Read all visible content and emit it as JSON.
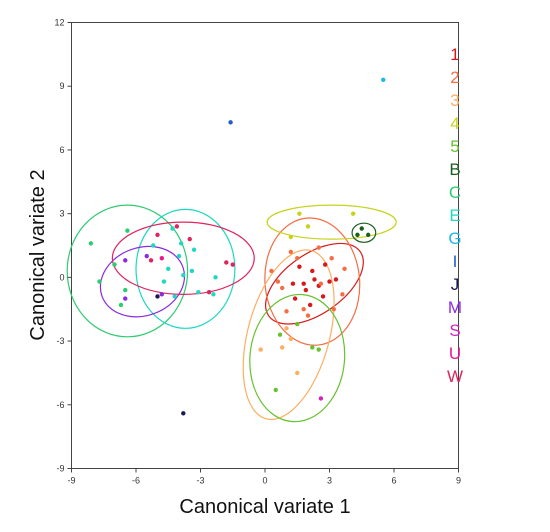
{
  "chart_data": {
    "type": "scatter",
    "title": "",
    "xlabel": "Canonical variate 1",
    "ylabel": "Canonical variate 2",
    "xlim": [
      -9,
      9
    ],
    "ylim": [
      -9,
      12
    ],
    "xticks": [
      "-9",
      "-6",
      "-3",
      "0",
      "3",
      "6",
      "9"
    ],
    "yticks": [
      "12",
      "9",
      "6",
      "3",
      "0",
      "-3",
      "-6",
      "-9"
    ],
    "grid": false,
    "legend_placement": "right",
    "series": [
      {
        "name": "1",
        "color": "#d7191c",
        "points": [
          [
            1.3,
            -0.3
          ],
          [
            1.6,
            0.5
          ],
          [
            1.9,
            -0.6
          ],
          [
            2.2,
            0.3
          ],
          [
            2.5,
            -0.4
          ],
          [
            2.8,
            0.6
          ],
          [
            3.0,
            -0.2
          ],
          [
            1.4,
            -1.0
          ],
          [
            2.1,
            -1.3
          ],
          [
            2.7,
            -0.9
          ],
          [
            3.3,
            -0.1
          ],
          [
            2.3,
            -0.1
          ],
          [
            1.8,
            -0.3
          ]
        ],
        "ellipse": {
          "cx": 2.3,
          "cy": -0.3,
          "rx": 2.6,
          "ry": 1.4,
          "angle": 35
        }
      },
      {
        "name": "2",
        "color": "#f46d43",
        "points": [
          [
            0.3,
            0.3
          ],
          [
            0.6,
            -0.2
          ],
          [
            1.2,
            1.2
          ],
          [
            1.8,
            -1.5
          ],
          [
            2.5,
            1.4
          ],
          [
            3.1,
            0.9
          ],
          [
            3.6,
            -0.8
          ],
          [
            3.2,
            -1.5
          ],
          [
            2.0,
            -1.8
          ],
          [
            1.0,
            -1.6
          ],
          [
            2.6,
            -0.3
          ],
          [
            3.7,
            0.4
          ],
          [
            0.8,
            -0.5
          ],
          [
            1.5,
            0.9
          ]
        ],
        "ellipse": {
          "cx": 2.2,
          "cy": -0.2,
          "rx": 2.2,
          "ry": 3.0,
          "angle": 5
        }
      },
      {
        "name": "3",
        "color": "#fdae61",
        "points": [
          [
            -0.2,
            -3.4
          ],
          [
            1.0,
            -2.4
          ],
          [
            1.5,
            -4.5
          ],
          [
            1.2,
            -2.9
          ],
          [
            0.8,
            -3.3
          ]
        ],
        "ellipse": {
          "cx": 1.1,
          "cy": -2.7,
          "rx": 1.9,
          "ry": 4.1,
          "angle": -15
        }
      },
      {
        "name": "4",
        "color": "#c9d21b",
        "points": [
          [
            1.6,
            3.0
          ],
          [
            4.1,
            3.0
          ],
          [
            2.0,
            2.4
          ],
          [
            4.3,
            2.0
          ],
          [
            1.2,
            1.9
          ]
        ],
        "ellipse": {
          "cx": 3.1,
          "cy": 2.6,
          "rx": 3.0,
          "ry": 0.8,
          "angle": 0
        }
      },
      {
        "name": "5",
        "color": "#66c22e",
        "points": [
          [
            0.5,
            -5.3
          ],
          [
            0.7,
            -2.7
          ],
          [
            2.2,
            -3.3
          ],
          [
            2.5,
            -3.4
          ],
          [
            1.5,
            -2.2
          ]
        ],
        "ellipse": {
          "cx": 1.5,
          "cy": -3.8,
          "rx": 2.2,
          "ry": 3.0,
          "angle": -5
        }
      },
      {
        "name": "B",
        "color": "#1b5e20",
        "points": [
          [
            4.3,
            2.0
          ],
          [
            4.8,
            2.0
          ],
          [
            4.5,
            2.3
          ]
        ],
        "ellipse": {
          "cx": 4.6,
          "cy": 2.1,
          "rx": 0.55,
          "ry": 0.45,
          "angle": 0
        }
      },
      {
        "name": "C",
        "color": "#2ecc71",
        "points": [
          [
            -8.1,
            1.6
          ],
          [
            -7.7,
            -0.2
          ],
          [
            -6.7,
            -1.3
          ],
          [
            -6.5,
            -0.6
          ],
          [
            -6.4,
            2.2
          ],
          [
            -7.0,
            0.6
          ]
        ],
        "ellipse": {
          "cx": -6.4,
          "cy": 0.3,
          "rx": 2.8,
          "ry": 3.1,
          "angle": 0
        }
      },
      {
        "name": "E",
        "color": "#1fd8c2",
        "points": [
          [
            -4.3,
            2.3
          ],
          [
            -3.9,
            1.6
          ],
          [
            -3.3,
            1.3
          ],
          [
            -4.5,
            0.4
          ],
          [
            -3.8,
            0.1
          ],
          [
            -3.4,
            0.3
          ],
          [
            -2.3,
            0.0
          ],
          [
            -4.2,
            -0.9
          ],
          [
            -3.1,
            -0.7
          ],
          [
            -5.2,
            1.5
          ],
          [
            -2.4,
            -0.8
          ],
          [
            -4.0,
            1.0
          ],
          [
            -4.7,
            -0.2
          ]
        ],
        "ellipse": {
          "cx": -3.7,
          "cy": 0.4,
          "rx": 2.3,
          "ry": 2.8,
          "angle": 0
        }
      },
      {
        "name": "G",
        "color": "#1fb6e6",
        "points": [
          [
            5.5,
            9.3
          ]
        ],
        "ellipse": null
      },
      {
        "name": "I",
        "color": "#1f5ec8",
        "points": [
          [
            -1.6,
            7.3
          ]
        ],
        "ellipse": null
      },
      {
        "name": "J",
        "color": "#1a1a4e",
        "points": [
          [
            -3.8,
            -6.4
          ],
          [
            -5.0,
            -0.9
          ]
        ],
        "ellipse": null
      },
      {
        "name": "M",
        "color": "#8a2be2",
        "points": [
          [
            -6.5,
            0.8
          ],
          [
            -6.5,
            -1.0
          ],
          [
            -4.8,
            -0.8
          ],
          [
            -5.5,
            1.0
          ]
        ],
        "ellipse": {
          "cx": -5.7,
          "cy": -0.2,
          "rx": 2.0,
          "ry": 1.6,
          "angle": 20
        }
      },
      {
        "name": "S",
        "color": "#d322b8",
        "points": [
          [
            2.6,
            -5.7
          ]
        ],
        "ellipse": null
      },
      {
        "name": "U",
        "color": "#e8198b",
        "points": [
          [
            -4.8,
            0.9
          ]
        ],
        "ellipse": null
      },
      {
        "name": "W",
        "color": "#e0245e",
        "points": [
          [
            -5.0,
            2.0
          ],
          [
            -3.5,
            1.8
          ],
          [
            -2.6,
            -0.7
          ],
          [
            -1.8,
            0.7
          ],
          [
            -1.5,
            0.6
          ],
          [
            -4.1,
            2.4
          ],
          [
            -5.3,
            0.8
          ]
        ],
        "ellipse": {
          "cx": -3.8,
          "cy": 0.9,
          "rx": 3.3,
          "ry": 1.7,
          "angle": 0
        }
      }
    ]
  }
}
